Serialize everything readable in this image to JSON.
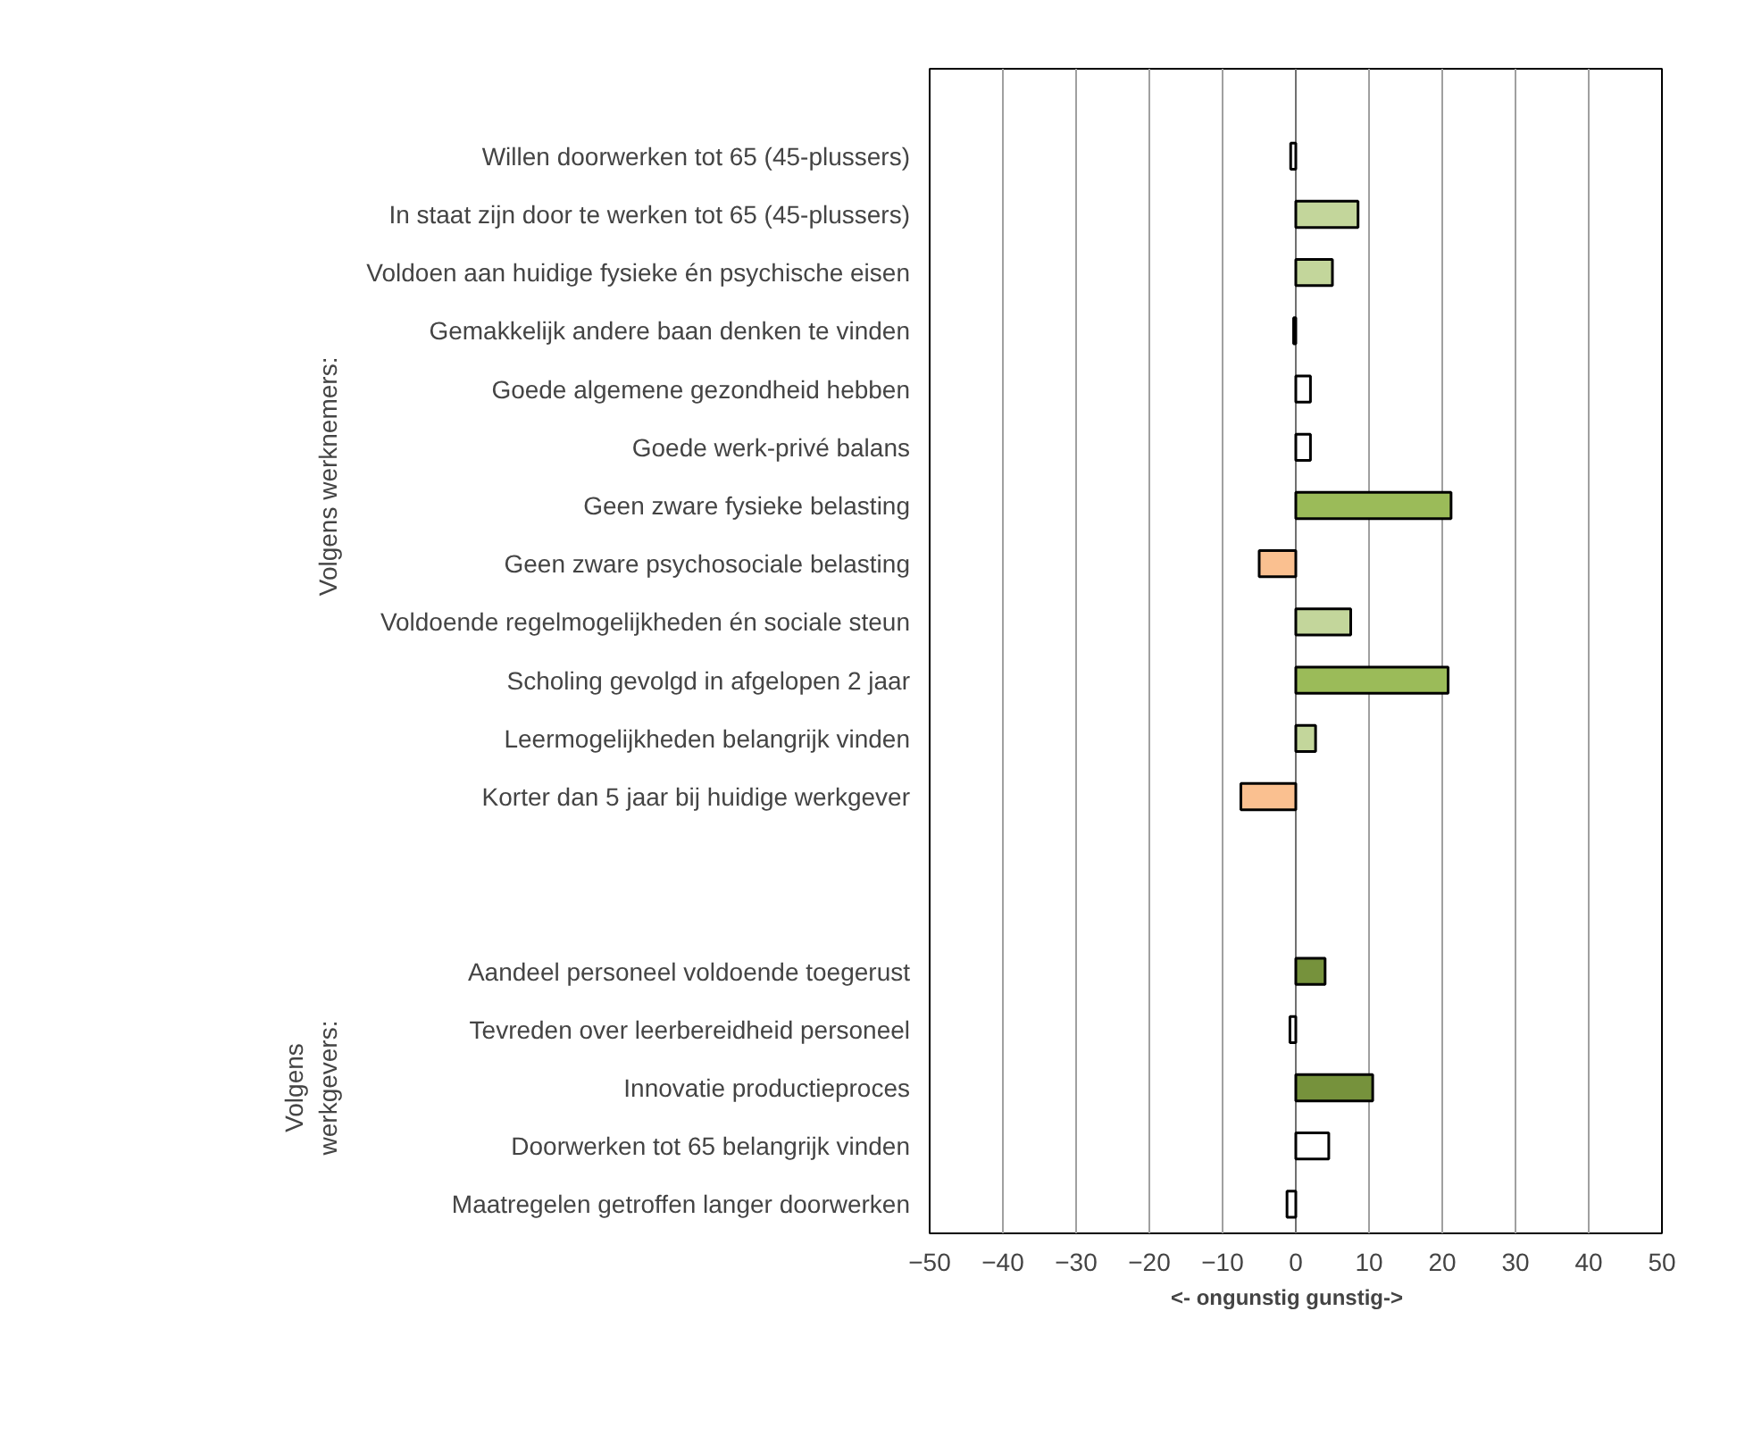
{
  "chart_data": {
    "type": "bar",
    "orientation": "horizontal",
    "xlabel": "<- ongunstig    gunstig->",
    "categories": [
      null,
      "Willen doorwerken tot 65 (45-plussers)",
      "In staat zijn door te werken tot 65 (45-plussers)",
      "Voldoen aan huidige fysieke én psychische eisen",
      "Gemakkelijk andere baan denken te vinden",
      "Goede algemene gezondheid hebben",
      "Goede werk-privé balans",
      "Geen zware fysieke belasting",
      "Geen zware psychosociale belasting",
      "Voldoende regelmogelijkheden én sociale steun",
      "Scholing gevolgd in afgelopen 2 jaar",
      "Leermogelijkheden belangrijk vinden",
      "Korter dan 5 jaar bij huidige werkgever",
      null,
      null,
      "Aandeel personeel voldoende toegerust",
      "Tevreden over leerbereidheid personeel",
      "Innovatie productieproces",
      "Doorwerken tot 65 belangrijk vinden",
      "Maatregelen getroffen langer doorwerken"
    ],
    "values": [
      null,
      -0.7,
      8.5,
      5,
      -0.3,
      2,
      2,
      21.2,
      -5,
      7.5,
      20.8,
      2.7,
      -7.5,
      null,
      null,
      4,
      -0.8,
      10.5,
      4.5,
      -1.2
    ],
    "colors": [
      "#ffffff",
      "#ffffff",
      "#c3d69b",
      "#c3d69b",
      "#ffffff",
      "#ffffff",
      "#ffffff",
      "#9bbb59",
      "#fac090",
      "#c3d69b",
      "#9bbb59",
      "#c3d69b",
      "#fac090",
      "#ffffff",
      "#ffffff",
      "#76923c",
      "#ffffff",
      "#76923c",
      "#ffffff",
      "#ffffff"
    ],
    "xlim": [
      -50,
      50
    ],
    "xticks": [
      -50,
      -40,
      -30,
      -20,
      -10,
      0,
      10,
      20,
      30,
      40,
      50
    ],
    "grid": "x",
    "annotations": [
      "Volgens werknemers:",
      "Volgens\nwerkgevers:"
    ]
  }
}
